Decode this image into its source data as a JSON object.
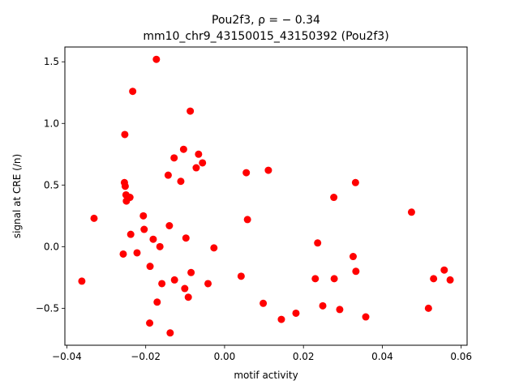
{
  "chart_data": {
    "type": "scatter",
    "title_line1": "Pou2f3, ρ = − 0.34",
    "title_line2": "mm10_chr9_43150015_43150392 (Pou2f3)",
    "xlabel": "motif activity",
    "ylabel": "signal at CRE (/n)",
    "xlim": [
      -0.0405,
      0.0615
    ],
    "ylim": [
      -0.8,
      1.62
    ],
    "xticks": [
      -0.04,
      -0.02,
      0.0,
      0.02,
      0.04,
      0.06
    ],
    "xtick_labels": [
      "−0.04",
      "−0.02",
      "0.00",
      "0.02",
      "0.04",
      "0.06"
    ],
    "yticks": [
      -0.5,
      0.0,
      0.5,
      1.0,
      1.5
    ],
    "ytick_labels": [
      "−0.5",
      "0.0",
      "0.5",
      "1.0",
      "1.5"
    ],
    "grid": false,
    "marker_color": "#ff0000",
    "points": [
      {
        "x": -0.0362,
        "y": -0.28
      },
      {
        "x": -0.0331,
        "y": 0.23
      },
      {
        "x": -0.0257,
        "y": -0.06
      },
      {
        "x": -0.0254,
        "y": 0.52
      },
      {
        "x": -0.0253,
        "y": 0.91
      },
      {
        "x": -0.0252,
        "y": 0.49
      },
      {
        "x": -0.025,
        "y": 0.42
      },
      {
        "x": -0.0249,
        "y": 0.37
      },
      {
        "x": -0.024,
        "y": 0.4
      },
      {
        "x": -0.0238,
        "y": 0.1
      },
      {
        "x": -0.0233,
        "y": 1.26
      },
      {
        "x": -0.0222,
        "y": -0.05
      },
      {
        "x": -0.0206,
        "y": 0.25
      },
      {
        "x": -0.0204,
        "y": 0.14
      },
      {
        "x": -0.019,
        "y": -0.62
      },
      {
        "x": -0.0189,
        "y": -0.16
      },
      {
        "x": -0.0181,
        "y": 0.06
      },
      {
        "x": -0.0173,
        "y": 1.52
      },
      {
        "x": -0.0171,
        "y": -0.45
      },
      {
        "x": -0.0164,
        "y": 0.0
      },
      {
        "x": -0.0159,
        "y": -0.3
      },
      {
        "x": -0.0143,
        "y": 0.58
      },
      {
        "x": -0.014,
        "y": 0.17
      },
      {
        "x": -0.0138,
        "y": -0.7
      },
      {
        "x": -0.0128,
        "y": 0.72
      },
      {
        "x": -0.0127,
        "y": -0.27
      },
      {
        "x": -0.0111,
        "y": 0.53
      },
      {
        "x": -0.0104,
        "y": 0.79
      },
      {
        "x": -0.0101,
        "y": -0.34
      },
      {
        "x": -0.0098,
        "y": 0.07
      },
      {
        "x": -0.0092,
        "y": -0.41
      },
      {
        "x": -0.0087,
        "y": 1.1
      },
      {
        "x": -0.0085,
        "y": -0.21
      },
      {
        "x": -0.0072,
        "y": 0.64
      },
      {
        "x": -0.0066,
        "y": 0.75
      },
      {
        "x": -0.0056,
        "y": 0.68
      },
      {
        "x": -0.0042,
        "y": -0.3
      },
      {
        "x": -0.0027,
        "y": -0.01
      },
      {
        "x": 0.0042,
        "y": -0.24
      },
      {
        "x": 0.0055,
        "y": 0.6
      },
      {
        "x": 0.0058,
        "y": 0.22
      },
      {
        "x": 0.0098,
        "y": -0.46
      },
      {
        "x": 0.0111,
        "y": 0.62
      },
      {
        "x": 0.0144,
        "y": -0.59
      },
      {
        "x": 0.0181,
        "y": -0.54
      },
      {
        "x": 0.023,
        "y": -0.26
      },
      {
        "x": 0.0236,
        "y": 0.03
      },
      {
        "x": 0.0249,
        "y": -0.48
      },
      {
        "x": 0.0277,
        "y": 0.4
      },
      {
        "x": 0.0278,
        "y": -0.26
      },
      {
        "x": 0.0292,
        "y": -0.51
      },
      {
        "x": 0.0326,
        "y": -0.08
      },
      {
        "x": 0.0332,
        "y": 0.52
      },
      {
        "x": 0.0333,
        "y": -0.2
      },
      {
        "x": 0.0358,
        "y": -0.57
      },
      {
        "x": 0.0474,
        "y": 0.28
      },
      {
        "x": 0.0517,
        "y": -0.5
      },
      {
        "x": 0.053,
        "y": -0.26
      },
      {
        "x": 0.0557,
        "y": -0.19
      },
      {
        "x": 0.0572,
        "y": -0.27
      }
    ]
  }
}
